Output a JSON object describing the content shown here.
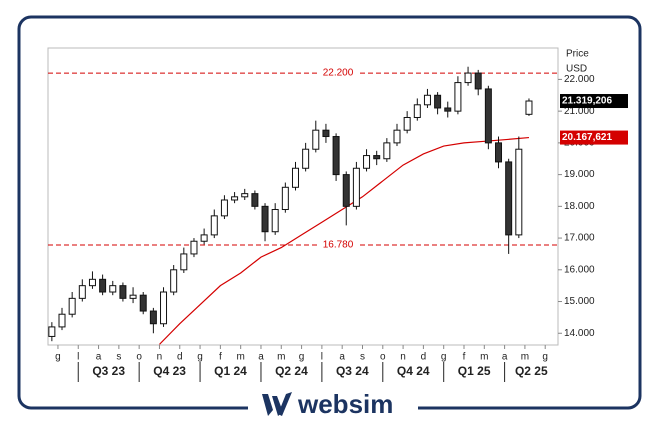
{
  "chart_data": {
    "type": "candlestick",
    "axis_label": "Price",
    "axis_unit": "USD",
    "brand": "websim",
    "x": [
      -0.3,
      0.2,
      0.7,
      1.2,
      1.7,
      2.2,
      2.7,
      3.2,
      3.7,
      4.2,
      4.7,
      5.2,
      5.7,
      6.2,
      6.7,
      7.2,
      7.7,
      8.2,
      8.7,
      9.2,
      9.7,
      10.2,
      10.7,
      11.2,
      11.7,
      12.2,
      12.7,
      13.2,
      13.7,
      14.2,
      14.7,
      15.2,
      15.7,
      16.2,
      16.7,
      17.2,
      17.7,
      18.2,
      18.7,
      19.2,
      19.7,
      20.2,
      20.7,
      21.2,
      21.7,
      22.2,
      22.7,
      23.2
    ],
    "open": [
      13900,
      14200,
      14600,
      15100,
      15500,
      15700,
      15300,
      15500,
      15100,
      15200,
      14700,
      14300,
      15300,
      16000,
      16500,
      16900,
      17100,
      17700,
      18200,
      18300,
      18400,
      18000,
      17200,
      17900,
      18600,
      19200,
      19800,
      20400,
      20200,
      19000,
      18000,
      19200,
      19600,
      19500,
      20000,
      20400,
      20800,
      21200,
      21500,
      21100,
      21000,
      21900,
      22200,
      21700,
      20000,
      19400,
      17100,
      20900
    ],
    "high": [
      14350,
      14800,
      15300,
      15700,
      15950,
      15850,
      15650,
      15600,
      15450,
      15300,
      14800,
      15450,
      16150,
      16700,
      17000,
      17300,
      17900,
      18350,
      18450,
      18550,
      18500,
      18100,
      18100,
      18750,
      19400,
      20000,
      20700,
      20600,
      20300,
      19100,
      19400,
      19800,
      19750,
      20150,
      20600,
      21000,
      21400,
      21700,
      21600,
      21300,
      22100,
      22400,
      22300,
      21800,
      20200,
      19500,
      20200,
      21400
    ],
    "low": [
      13750,
      14100,
      14500,
      15000,
      15400,
      15200,
      15200,
      15000,
      14950,
      14600,
      14000,
      14200,
      15200,
      15900,
      16400,
      16800,
      17000,
      17600,
      18100,
      18200,
      17900,
      16900,
      17100,
      17800,
      18500,
      19100,
      19700,
      20000,
      18800,
      17400,
      17900,
      19100,
      19300,
      19400,
      19900,
      20300,
      20700,
      21100,
      20900,
      20800,
      20900,
      21800,
      21500,
      19800,
      19200,
      16500,
      17000,
      20850
    ],
    "close": [
      14200,
      14600,
      15100,
      15500,
      15700,
      15300,
      15500,
      15100,
      15200,
      14700,
      14300,
      15300,
      16000,
      16500,
      16900,
      17100,
      17700,
      18200,
      18300,
      18400,
      18000,
      17200,
      17900,
      18600,
      19200,
      19800,
      20400,
      20200,
      19000,
      18000,
      19200,
      19600,
      19500,
      20000,
      20400,
      20800,
      21200,
      21500,
      21100,
      21000,
      21900,
      22200,
      21700,
      20000,
      19400,
      17100,
      19800,
      21319.206
    ],
    "ma": {
      "color": "#d40000",
      "x": [
        5,
        6,
        7,
        8,
        9,
        10,
        11,
        12,
        13,
        14,
        15,
        16,
        17,
        18,
        19,
        20,
        21,
        22,
        23.2
      ],
      "values": [
        13650,
        14300,
        14900,
        15500,
        15900,
        16400,
        16700,
        17100,
        17500,
        17900,
        18300,
        18800,
        19300,
        19650,
        19900,
        20000,
        20050,
        20100,
        20167.621
      ]
    },
    "last_price": {
      "value": 21319.206,
      "label": "21.319,206"
    },
    "ma_last": {
      "value": 20167.621,
      "label": "20.167,621"
    },
    "hlines": [
      {
        "value": 22200,
        "label": "22.200"
      },
      {
        "value": 16780,
        "label": "16.780"
      }
    ],
    "hline_color": "#d40000",
    "xlim": [
      -0.49,
      24.63
    ],
    "ylim": [
      13630,
      22990
    ],
    "yticks": [
      {
        "value": 14000,
        "label": "14.000"
      },
      {
        "value": 15000,
        "label": "15.000"
      },
      {
        "value": 16000,
        "label": "16.000"
      },
      {
        "value": 17000,
        "label": "17.000"
      },
      {
        "value": 18000,
        "label": "18.000"
      },
      {
        "value": 19000,
        "label": "19.000"
      },
      {
        "value": 20000,
        "label": "20.000"
      },
      {
        "value": 21000,
        "label": "21.000"
      },
      {
        "value": 22000,
        "label": "22.000"
      }
    ],
    "xticks": [
      {
        "value": 0,
        "label": "g"
      },
      {
        "value": 1,
        "label": "l"
      },
      {
        "value": 2,
        "label": "a"
      },
      {
        "value": 3,
        "label": "s"
      },
      {
        "value": 4,
        "label": "o"
      },
      {
        "value": 5,
        "label": "n"
      },
      {
        "value": 6,
        "label": "d"
      },
      {
        "value": 7,
        "label": "g"
      },
      {
        "value": 8,
        "label": "f"
      },
      {
        "value": 9,
        "label": "m"
      },
      {
        "value": 10,
        "label": "a"
      },
      {
        "value": 11,
        "label": "m"
      },
      {
        "value": 12,
        "label": "g"
      },
      {
        "value": 13,
        "label": "l"
      },
      {
        "value": 14,
        "label": "a"
      },
      {
        "value": 15,
        "label": "s"
      },
      {
        "value": 16,
        "label": "o"
      },
      {
        "value": 17,
        "label": "n"
      },
      {
        "value": 18,
        "label": "d"
      },
      {
        "value": 19,
        "label": "g"
      },
      {
        "value": 20,
        "label": "f"
      },
      {
        "value": 21,
        "label": "m"
      },
      {
        "value": 22,
        "label": "a"
      },
      {
        "value": 23,
        "label": "m"
      },
      {
        "value": 24,
        "label": "g"
      }
    ],
    "quarters": [
      {
        "label": "Q3 23",
        "start": 1,
        "end": 4
      },
      {
        "label": "Q4 23",
        "start": 4,
        "end": 7
      },
      {
        "label": "Q1 24",
        "start": 7,
        "end": 10
      },
      {
        "label": "Q2 24",
        "start": 10,
        "end": 13
      },
      {
        "label": "Q3 24",
        "start": 13,
        "end": 16
      },
      {
        "label": "Q4 24",
        "start": 16,
        "end": 19
      },
      {
        "label": "Q1 25",
        "start": 19,
        "end": 22
      },
      {
        "label": "Q2 25",
        "start": 22,
        "end": 25
      }
    ]
  }
}
